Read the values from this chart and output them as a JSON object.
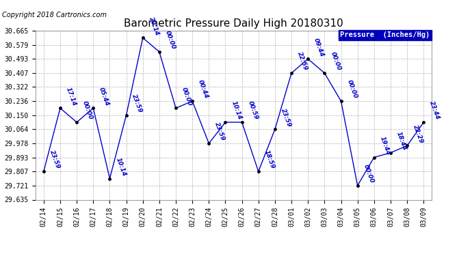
{
  "title": "Barometric Pressure Daily High 20180310",
  "copyright": "Copyright 2018 Cartronics.com",
  "legend_label": "Pressure  (Inches/Hg)",
  "line_color": "#0000CC",
  "bg_color": "#ffffff",
  "plot_bg_color": "#ffffff",
  "grid_color": "#b0b0b0",
  "dates": [
    "02/14",
    "02/15",
    "02/16",
    "02/17",
    "02/18",
    "02/19",
    "02/20",
    "02/21",
    "02/22",
    "02/23",
    "02/24",
    "02/25",
    "02/26",
    "02/27",
    "02/28",
    "03/01",
    "03/02",
    "03/03",
    "03/04",
    "03/05",
    "03/06",
    "03/07",
    "03/08",
    "03/09"
  ],
  "values": [
    29.807,
    30.193,
    30.107,
    30.193,
    29.764,
    30.15,
    30.622,
    30.536,
    30.193,
    30.236,
    29.978,
    30.107,
    30.107,
    29.807,
    30.064,
    30.407,
    30.493,
    30.407,
    30.236,
    29.721,
    29.893,
    29.921,
    29.964,
    30.107
  ],
  "time_labels": [
    "23:59",
    "17:14",
    "00:00",
    "05:44",
    "10:14",
    "23:59",
    "20:14",
    "00:00",
    "00:00",
    "00:44",
    "23:59",
    "10:14",
    "00:59",
    "18:59",
    "23:59",
    "22:59",
    "09:44",
    "00:00",
    "00:00",
    "00:00",
    "19:44",
    "18:44",
    "22:29",
    "23:44"
  ],
  "ylim_min": 29.635,
  "ylim_max": 30.665,
  "yticks": [
    29.635,
    29.721,
    29.807,
    29.893,
    29.978,
    30.064,
    30.15,
    30.236,
    30.322,
    30.407,
    30.493,
    30.579,
    30.665
  ],
  "marker_size": 2.5,
  "line_width": 1.0,
  "title_fontsize": 11,
  "tick_fontsize": 7,
  "annot_fontsize": 6.5,
  "copyright_fontsize": 7,
  "legend_fontsize": 7.5
}
